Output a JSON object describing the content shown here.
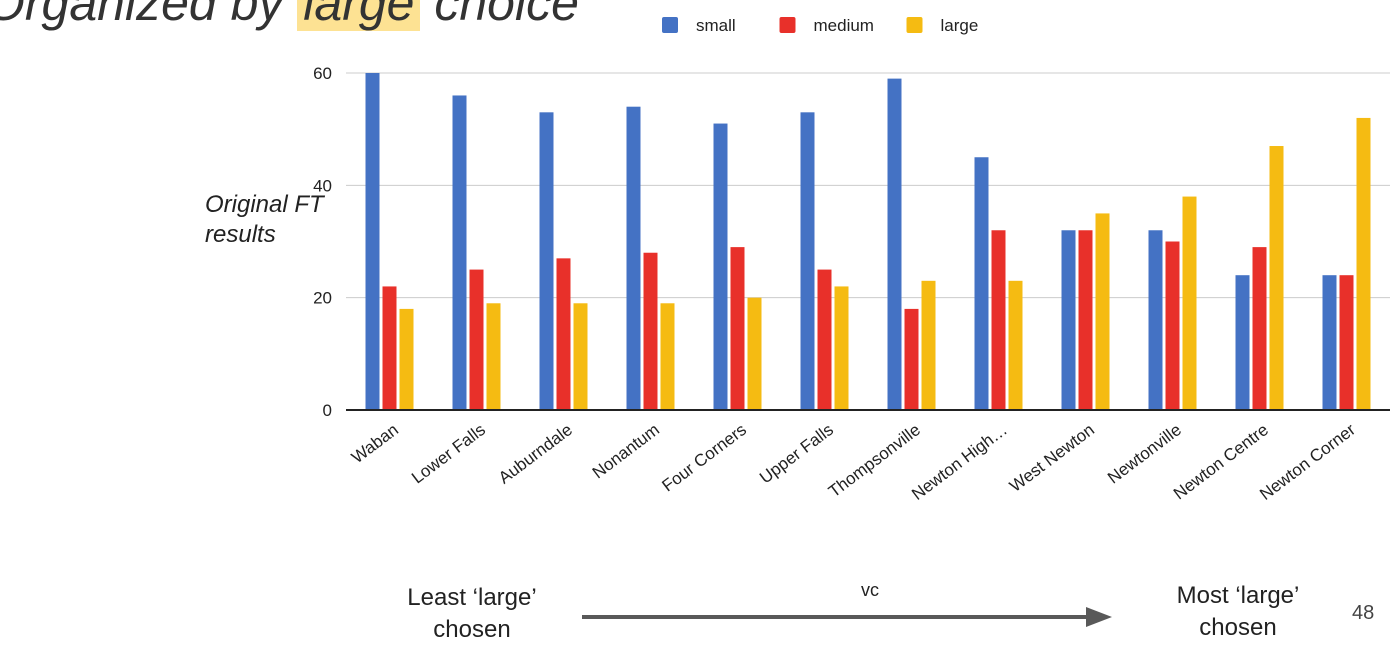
{
  "slide": {
    "title_before": "Organized by ",
    "title_highlight": "large",
    "title_after": " choice",
    "side_note": "Original FT results",
    "footer_left": "Least ‘large’ chosen",
    "footer_right": "Most ‘large’ chosen",
    "arrow_label": "vc",
    "page_number": "48"
  },
  "chart_data": {
    "type": "bar",
    "title": "",
    "xlabel": "",
    "ylabel": "",
    "ylim": [
      0,
      60
    ],
    "yticks": [
      0,
      20,
      40,
      60
    ],
    "grid": true,
    "legend_position": "top",
    "categories": [
      "Waban",
      "Lower Falls",
      "Auburndale",
      "Nonantum",
      "Four Corners",
      "Upper Falls",
      "Thompsonville",
      "Newton High…",
      "West Newton",
      "Newtonville",
      "Newton Centre",
      "Newton Corner"
    ],
    "series": [
      {
        "name": "small",
        "color": "#4472c4",
        "values": [
          60,
          56,
          53,
          54,
          51,
          53,
          59,
          45,
          32,
          32,
          24,
          24
        ]
      },
      {
        "name": "medium",
        "color": "#e8302a",
        "values": [
          22,
          25,
          27,
          28,
          29,
          25,
          18,
          32,
          32,
          30,
          29,
          24
        ]
      },
      {
        "name": "large",
        "color": "#f5bb12",
        "values": [
          18,
          19,
          19,
          19,
          20,
          22,
          23,
          23,
          35,
          38,
          47,
          52
        ]
      }
    ]
  }
}
